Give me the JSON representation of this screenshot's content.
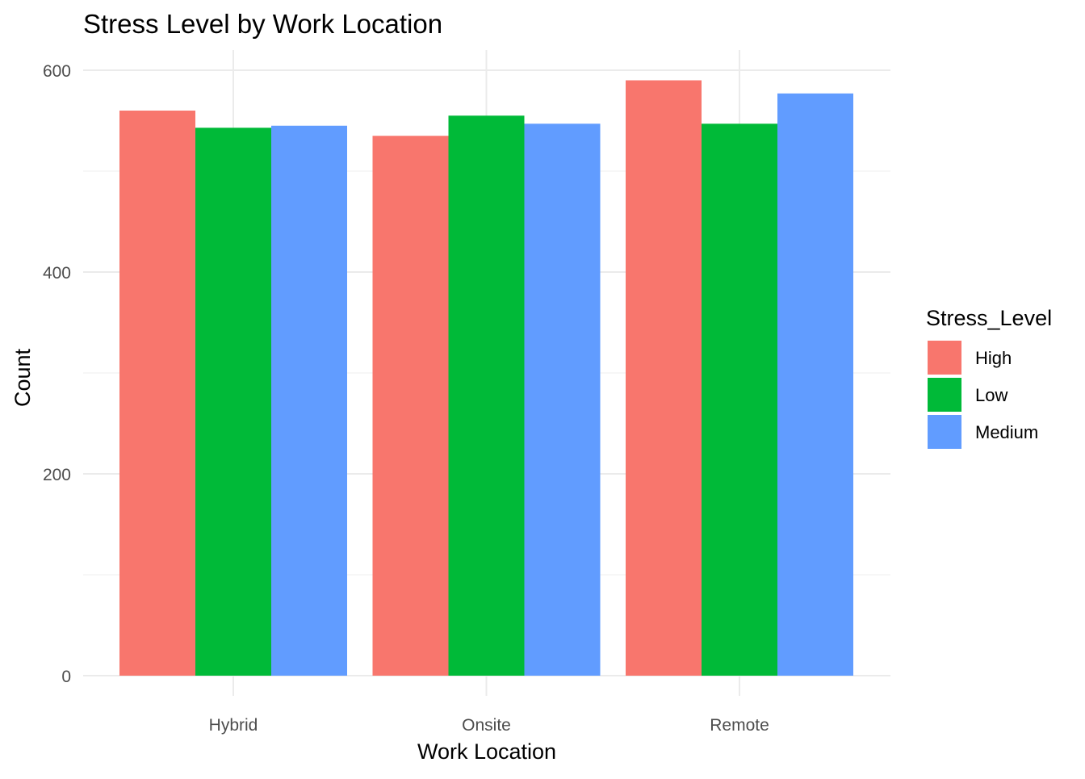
{
  "chart_data": {
    "type": "bar",
    "title": "Stress Level by Work Location",
    "xlabel": "Work Location",
    "ylabel": "Count",
    "categories": [
      "Hybrid",
      "Onsite",
      "Remote"
    ],
    "series": [
      {
        "name": "High",
        "color": "#F8766D",
        "values": [
          560,
          535,
          590
        ]
      },
      {
        "name": "Low",
        "color": "#00BA38",
        "values": [
          543,
          555,
          547
        ]
      },
      {
        "name": "Medium",
        "color": "#619CFF",
        "values": [
          545,
          547,
          577
        ]
      }
    ],
    "ylim": [
      0,
      620
    ],
    "yticks": [
      0,
      200,
      400,
      600
    ],
    "grid": true,
    "legend": {
      "title": "Stress_Level",
      "position": "right"
    }
  }
}
